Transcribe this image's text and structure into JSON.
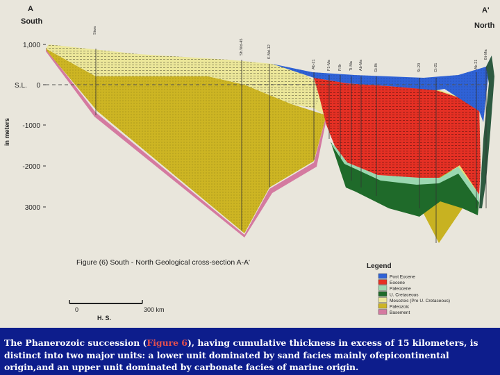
{
  "labels": {
    "section_start": "A",
    "section_end": "A'",
    "south": "South",
    "north": "North",
    "sea_level": "S.L.",
    "y_axis": "in meters"
  },
  "y_ticks": [
    "1,000",
    "0",
    "-1000",
    "-2000",
    "3000"
  ],
  "wells": [
    "Siwa",
    "Sh.Wd-45",
    "K.Md-12",
    "Ab-21",
    "F1-Ma",
    "P.Br",
    "Ti-Ma",
    "Ab-Ma",
    "Gt-Bt",
    "St-20",
    "Ct-21",
    "Ak-21",
    "Bt-Ma"
  ],
  "figure_title": "Figure (6) South - North Geological cross-section A-A'",
  "scale": {
    "start": "0",
    "end": "300 km",
    "units": "H. S."
  },
  "legend": {
    "title": "Legend",
    "items": [
      {
        "label": "Post Eocene",
        "color": "#2f62d6"
      },
      {
        "label": "Eocene",
        "color": "#e53024"
      },
      {
        "label": "Paleocene",
        "color": "#9ad8b0"
      },
      {
        "label": "U. Cretaceous",
        "color": "#1f6a2a"
      },
      {
        "label": "Mesozoic (Pre U. Cretaceous)",
        "color": "#ece79a"
      },
      {
        "label": "Paleozoic",
        "color": "#cdb523"
      },
      {
        "label": "Basement",
        "color": "#d47aa0"
      }
    ]
  },
  "caption": {
    "before": "The Phanerozoic succession  (",
    "highlight": "Figure 6",
    "after": "), having cumulative thickness in excess of 15 kilometers, is distinct into two major units: a lower unit dominated by sand facies mainly ofepicontinental origin,and  an upper unit dominated by carbonate facies of marine origin."
  }
}
